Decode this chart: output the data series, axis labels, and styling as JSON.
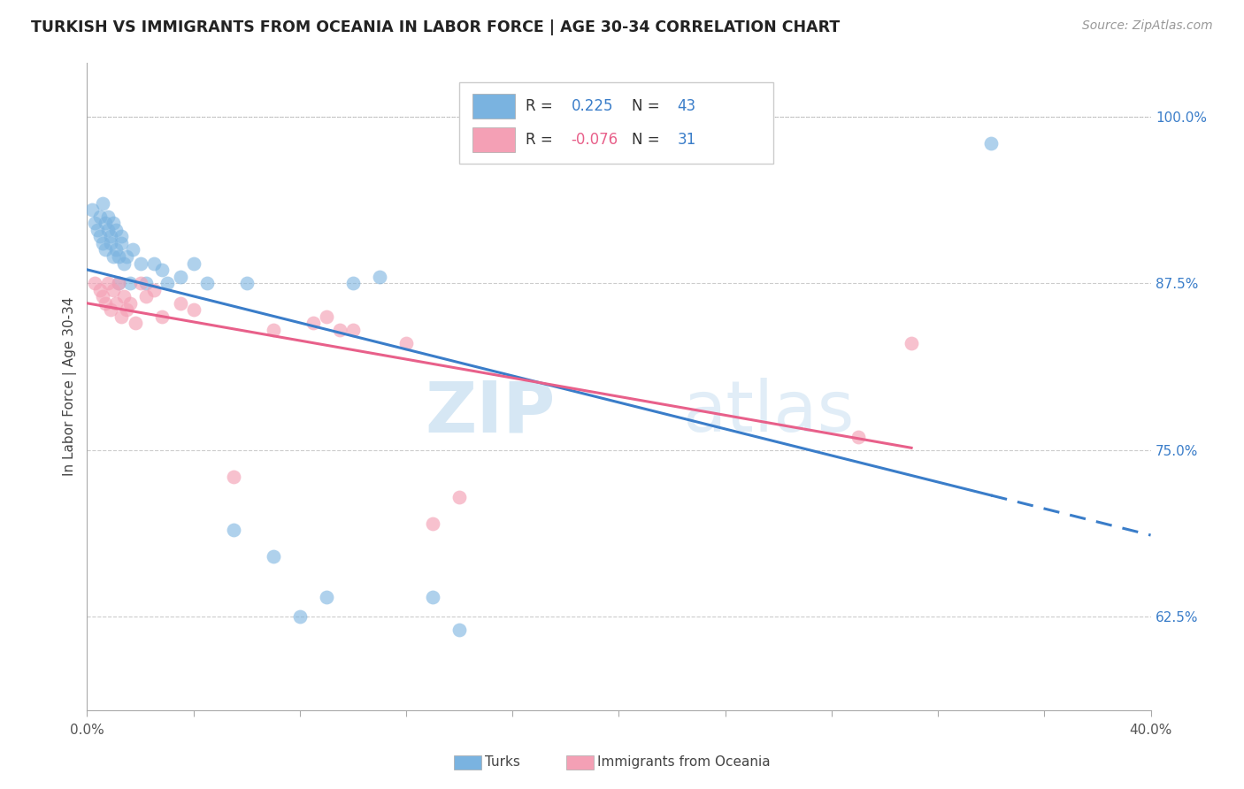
{
  "title": "TURKISH VS IMMIGRANTS FROM OCEANIA IN LABOR FORCE | AGE 30-34 CORRELATION CHART",
  "source": "Source: ZipAtlas.com",
  "ylabel": "In Labor Force | Age 30-34",
  "xlim": [
    0.0,
    0.4
  ],
  "ylim": [
    0.555,
    1.04
  ],
  "ytick_labels_right": [
    "100.0%",
    "87.5%",
    "75.0%",
    "62.5%"
  ],
  "ytick_values_right": [
    1.0,
    0.875,
    0.75,
    0.625
  ],
  "blue_color": "#7ab3e0",
  "pink_color": "#f4a0b5",
  "trendline_blue": "#3a7dc9",
  "trendline_pink": "#e8608a",
  "turks_x": [
    0.002,
    0.003,
    0.004,
    0.005,
    0.005,
    0.006,
    0.006,
    0.007,
    0.007,
    0.008,
    0.008,
    0.009,
    0.009,
    0.01,
    0.01,
    0.011,
    0.011,
    0.012,
    0.012,
    0.013,
    0.013,
    0.014,
    0.015,
    0.016,
    0.017,
    0.02,
    0.022,
    0.025,
    0.028,
    0.03,
    0.035,
    0.04,
    0.045,
    0.055,
    0.06,
    0.07,
    0.08,
    0.09,
    0.1,
    0.11,
    0.13,
    0.14,
    0.34
  ],
  "turks_y": [
    0.93,
    0.92,
    0.915,
    0.925,
    0.91,
    0.935,
    0.905,
    0.92,
    0.9,
    0.915,
    0.925,
    0.91,
    0.905,
    0.895,
    0.92,
    0.9,
    0.915,
    0.875,
    0.895,
    0.905,
    0.91,
    0.89,
    0.895,
    0.875,
    0.9,
    0.89,
    0.875,
    0.89,
    0.885,
    0.875,
    0.88,
    0.89,
    0.875,
    0.69,
    0.875,
    0.67,
    0.625,
    0.64,
    0.875,
    0.88,
    0.64,
    0.615,
    0.98
  ],
  "oceania_x": [
    0.003,
    0.005,
    0.006,
    0.007,
    0.008,
    0.009,
    0.01,
    0.011,
    0.012,
    0.013,
    0.014,
    0.015,
    0.016,
    0.018,
    0.02,
    0.022,
    0.025,
    0.028,
    0.035,
    0.04,
    0.055,
    0.07,
    0.085,
    0.09,
    0.095,
    0.1,
    0.12,
    0.13,
    0.14,
    0.29,
    0.31
  ],
  "oceania_y": [
    0.875,
    0.87,
    0.865,
    0.86,
    0.875,
    0.855,
    0.87,
    0.86,
    0.875,
    0.85,
    0.865,
    0.855,
    0.86,
    0.845,
    0.875,
    0.865,
    0.87,
    0.85,
    0.86,
    0.855,
    0.73,
    0.84,
    0.845,
    0.85,
    0.84,
    0.84,
    0.83,
    0.695,
    0.715,
    0.76,
    0.83
  ]
}
